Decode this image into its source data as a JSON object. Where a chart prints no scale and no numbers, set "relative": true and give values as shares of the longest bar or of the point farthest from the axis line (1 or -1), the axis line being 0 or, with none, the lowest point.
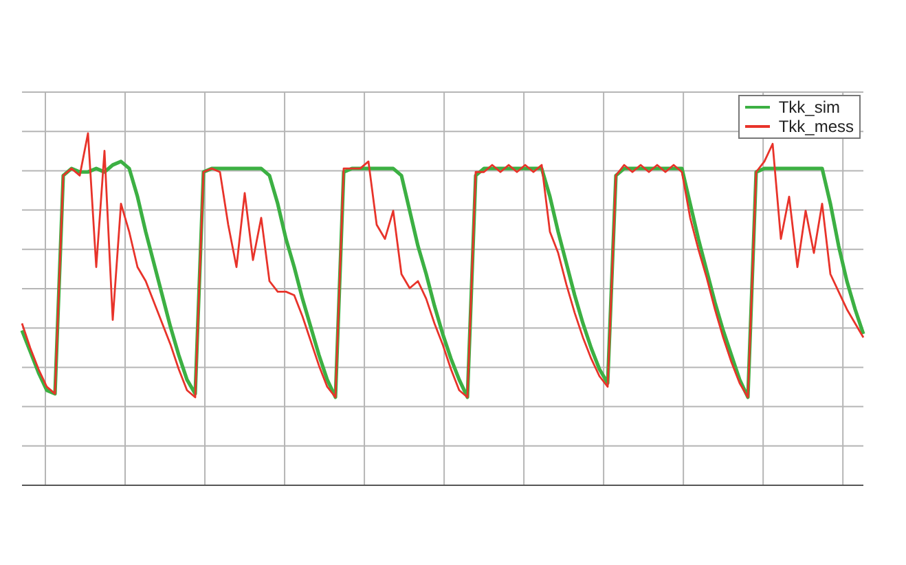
{
  "chart_data": {
    "type": "line",
    "relative": true,
    "grid": true,
    "legend": "top right",
    "marker": "none",
    "categories": [
      null,
      null,
      null,
      null,
      null,
      null,
      null,
      null,
      null,
      null,
      null,
      null,
      null,
      null,
      null,
      null,
      null,
      null,
      null,
      null,
      null,
      null,
      null,
      null,
      null,
      null,
      null,
      null,
      null,
      null,
      null,
      null,
      null,
      null,
      null,
      null,
      null,
      null,
      null,
      null,
      null,
      null,
      null,
      null,
      null,
      null,
      null,
      null,
      null,
      null,
      null,
      null,
      null,
      null,
      null,
      null,
      null,
      null,
      null,
      null,
      null,
      null,
      null,
      null,
      null,
      null,
      null,
      null,
      null,
      null,
      null,
      null,
      null,
      null,
      null,
      null,
      null,
      null,
      null,
      null,
      null,
      null,
      null,
      null,
      null,
      null,
      null,
      null,
      null,
      null,
      null,
      null,
      null,
      null,
      null,
      null,
      null,
      null,
      null,
      null,
      null,
      null,
      null
    ],
    "series": [
      {
        "name": "Tkk_sim",
        "color": "#3cb043",
        "values": [
          0.44,
          0.38,
          0.32,
          0.27,
          0.26,
          0.88,
          0.9,
          0.89,
          0.89,
          0.9,
          0.89,
          0.91,
          0.92,
          0.9,
          0.82,
          0.72,
          0.63,
          0.54,
          0.45,
          0.37,
          0.3,
          0.26,
          0.89,
          0.9,
          0.9,
          0.9,
          0.9,
          0.9,
          0.9,
          0.9,
          0.88,
          0.8,
          0.7,
          0.62,
          0.53,
          0.45,
          0.37,
          0.3,
          0.25,
          0.89,
          0.9,
          0.9,
          0.9,
          0.9,
          0.9,
          0.9,
          0.88,
          0.78,
          0.68,
          0.6,
          0.51,
          0.43,
          0.36,
          0.3,
          0.25,
          0.88,
          0.9,
          0.9,
          0.9,
          0.9,
          0.9,
          0.9,
          0.9,
          0.9,
          0.82,
          0.72,
          0.63,
          0.54,
          0.46,
          0.39,
          0.33,
          0.29,
          0.88,
          0.9,
          0.9,
          0.9,
          0.9,
          0.9,
          0.9,
          0.9,
          0.9,
          0.8,
          0.7,
          0.61,
          0.52,
          0.44,
          0.37,
          0.3,
          0.25,
          0.89,
          0.9,
          0.9,
          0.9,
          0.9,
          0.9,
          0.9,
          0.9,
          0.9,
          0.8,
          0.68,
          0.58,
          0.5,
          0.43
        ]
      },
      {
        "name": "Tkk_mess",
        "color": "#e8332a",
        "values": [
          0.46,
          0.39,
          0.33,
          0.28,
          0.26,
          0.88,
          0.9,
          0.88,
          1.0,
          0.62,
          0.95,
          0.47,
          0.8,
          0.72,
          0.62,
          0.58,
          0.52,
          0.46,
          0.4,
          0.33,
          0.27,
          0.25,
          0.89,
          0.9,
          0.89,
          0.74,
          0.62,
          0.83,
          0.64,
          0.76,
          0.58,
          0.55,
          0.55,
          0.54,
          0.48,
          0.41,
          0.34,
          0.28,
          0.25,
          0.9,
          0.9,
          0.9,
          0.92,
          0.74,
          0.7,
          0.78,
          0.6,
          0.56,
          0.58,
          0.53,
          0.46,
          0.4,
          0.33,
          0.27,
          0.25,
          0.89,
          0.89,
          0.91,
          0.89,
          0.91,
          0.89,
          0.91,
          0.89,
          0.91,
          0.72,
          0.66,
          0.57,
          0.49,
          0.42,
          0.36,
          0.31,
          0.28,
          0.88,
          0.91,
          0.89,
          0.91,
          0.89,
          0.91,
          0.89,
          0.91,
          0.89,
          0.76,
          0.67,
          0.59,
          0.5,
          0.42,
          0.35,
          0.29,
          0.25,
          0.89,
          0.92,
          0.97,
          0.7,
          0.82,
          0.62,
          0.78,
          0.66,
          0.8,
          0.6,
          0.55,
          0.5,
          0.46,
          0.42
        ]
      }
    ]
  }
}
